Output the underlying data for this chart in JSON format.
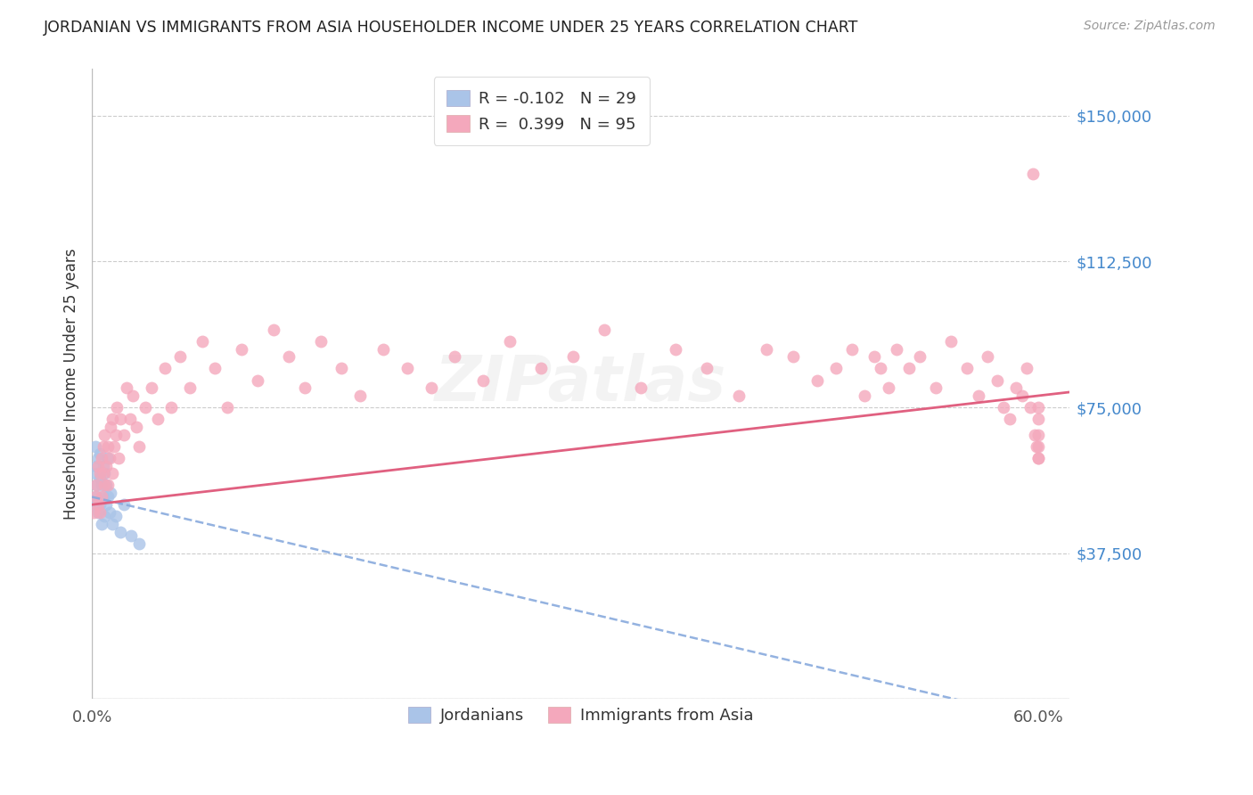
{
  "title": "JORDANIAN VS IMMIGRANTS FROM ASIA HOUSEHOLDER INCOME UNDER 25 YEARS CORRELATION CHART",
  "source": "Source: ZipAtlas.com",
  "ylabel": "Householder Income Under 25 years",
  "xlim": [
    0.0,
    0.62
  ],
  "ylim": [
    0,
    162000
  ],
  "yticks": [
    0,
    37500,
    75000,
    112500,
    150000
  ],
  "ytick_labels": [
    "",
    "$37,500",
    "$75,000",
    "$112,500",
    "$150,000"
  ],
  "xticks": [
    0.0,
    0.6
  ],
  "xtick_labels": [
    "0.0%",
    "60.0%"
  ],
  "grid_color": "#cccccc",
  "background_color": "#ffffff",
  "jordanian_color": "#aac4e8",
  "immigrant_color": "#f4a8bc",
  "jordanian_line_color": "#88aadd",
  "immigrant_line_color": "#e06080",
  "legend_R1": "-0.102",
  "legend_N1": "29",
  "legend_R2": "0.399",
  "legend_N2": "95",
  "legend_R1_color": "#4488cc",
  "legend_R2_color": "#e06080",
  "legend_N_color": "#4488cc",
  "jordanians_label": "Jordanians",
  "immigrants_label": "Immigrants from Asia",
  "jordanian_x": [
    0.001,
    0.002,
    0.002,
    0.003,
    0.003,
    0.003,
    0.004,
    0.004,
    0.005,
    0.005,
    0.005,
    0.006,
    0.006,
    0.007,
    0.007,
    0.008,
    0.008,
    0.009,
    0.009,
    0.01,
    0.01,
    0.011,
    0.012,
    0.013,
    0.015,
    0.018,
    0.02,
    0.025,
    0.03
  ],
  "jordanian_y": [
    50000,
    58000,
    65000,
    52000,
    60000,
    55000,
    48000,
    62000,
    50000,
    57000,
    63000,
    55000,
    45000,
    60000,
    52000,
    58000,
    47000,
    55000,
    50000,
    52000,
    62000,
    48000,
    53000,
    45000,
    47000,
    43000,
    50000,
    42000,
    40000
  ],
  "immigrant_x": [
    0.001,
    0.002,
    0.003,
    0.004,
    0.004,
    0.005,
    0.005,
    0.006,
    0.006,
    0.007,
    0.007,
    0.008,
    0.008,
    0.009,
    0.01,
    0.01,
    0.011,
    0.012,
    0.013,
    0.013,
    0.014,
    0.015,
    0.016,
    0.017,
    0.018,
    0.02,
    0.022,
    0.024,
    0.026,
    0.028,
    0.03,
    0.034,
    0.038,
    0.042,
    0.046,
    0.05,
    0.056,
    0.062,
    0.07,
    0.078,
    0.086,
    0.095,
    0.105,
    0.115,
    0.125,
    0.135,
    0.145,
    0.158,
    0.17,
    0.185,
    0.2,
    0.215,
    0.23,
    0.248,
    0.265,
    0.285,
    0.305,
    0.325,
    0.348,
    0.37,
    0.39,
    0.41,
    0.428,
    0.445,
    0.46,
    0.472,
    0.482,
    0.49,
    0.496,
    0.5,
    0.505,
    0.51,
    0.518,
    0.525,
    0.535,
    0.545,
    0.555,
    0.562,
    0.568,
    0.574,
    0.578,
    0.582,
    0.586,
    0.59,
    0.593,
    0.595,
    0.597,
    0.598,
    0.599,
    0.6,
    0.6,
    0.6,
    0.6,
    0.6,
    0.6
  ],
  "immigrant_y": [
    48000,
    52000,
    55000,
    50000,
    60000,
    48000,
    58000,
    52000,
    62000,
    58000,
    65000,
    55000,
    68000,
    60000,
    55000,
    65000,
    62000,
    70000,
    58000,
    72000,
    65000,
    68000,
    75000,
    62000,
    72000,
    68000,
    80000,
    72000,
    78000,
    70000,
    65000,
    75000,
    80000,
    72000,
    85000,
    75000,
    88000,
    80000,
    92000,
    85000,
    75000,
    90000,
    82000,
    95000,
    88000,
    80000,
    92000,
    85000,
    78000,
    90000,
    85000,
    80000,
    88000,
    82000,
    92000,
    85000,
    88000,
    95000,
    80000,
    90000,
    85000,
    78000,
    90000,
    88000,
    82000,
    85000,
    90000,
    78000,
    88000,
    85000,
    80000,
    90000,
    85000,
    88000,
    80000,
    92000,
    85000,
    78000,
    88000,
    82000,
    75000,
    72000,
    80000,
    78000,
    85000,
    75000,
    135000,
    68000,
    65000,
    62000,
    75000,
    72000,
    68000,
    65000,
    62000
  ]
}
